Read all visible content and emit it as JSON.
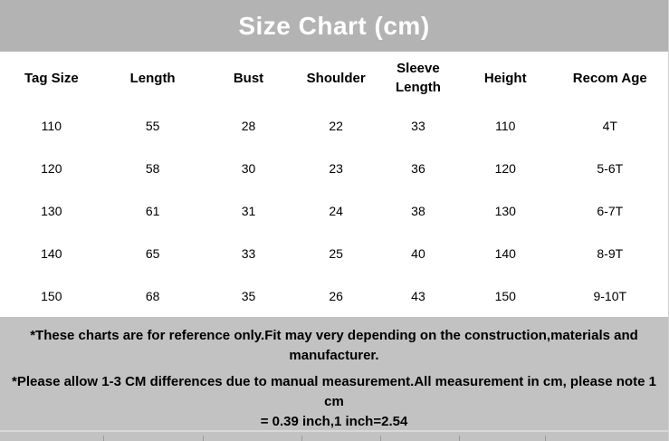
{
  "title": "Size Chart (cm)",
  "chart_data": {
    "type": "table",
    "title": "Size Chart (cm)",
    "columns": [
      "Tag Size",
      "Length",
      "Bust",
      "Shoulder",
      "Sleeve Length",
      "Height",
      "Recom Age"
    ],
    "rows": [
      [
        "110",
        "55",
        "28",
        "22",
        "33",
        "110",
        "4T"
      ],
      [
        "120",
        "58",
        "30",
        "23",
        "36",
        "120",
        "5-6T"
      ],
      [
        "130",
        "61",
        "31",
        "24",
        "38",
        "130",
        "6-7T"
      ],
      [
        "140",
        "65",
        "33",
        "25",
        "40",
        "140",
        "8-9T"
      ],
      [
        "150",
        "68",
        "35",
        "26",
        "43",
        "150",
        "9-10T"
      ]
    ],
    "units": "cm"
  },
  "notes": [
    {
      "lines": [
        "*These charts are for reference only.Fit may very depending on the construction,materials and",
        "manufacturer."
      ]
    },
    {
      "lines": [
        "*Please allow 1-3 CM differences due to manual measurement.All measurement in cm, please note 1 cm",
        "= 0.39 inch,1 inch=2.54"
      ]
    }
  ],
  "colors": {
    "title_bg": "#b3b3b3",
    "title_text": "#ffffff",
    "notes_bg": "#c2c2c2",
    "body_bg": "#ffffff",
    "text": "#000000"
  }
}
